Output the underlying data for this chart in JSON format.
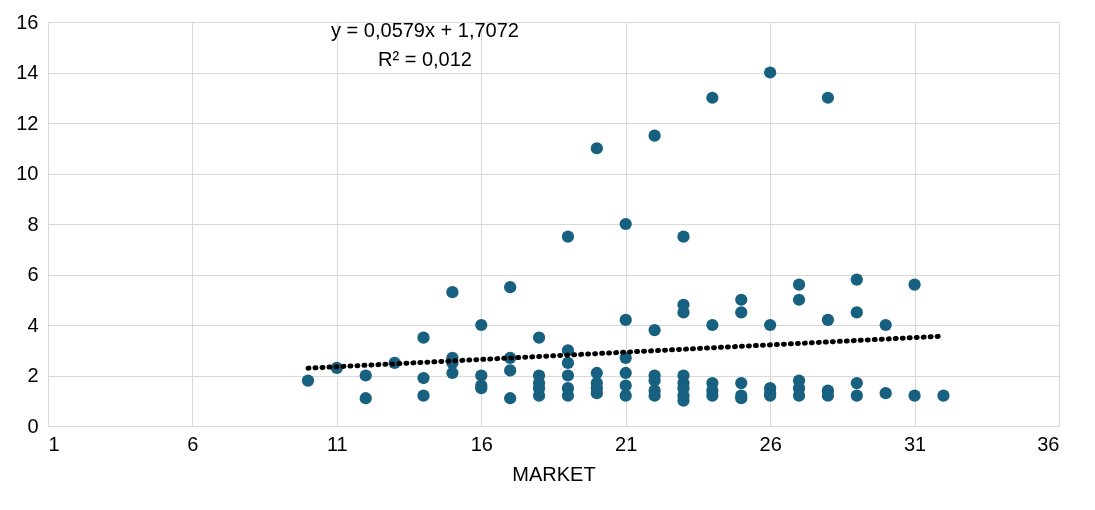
{
  "chart_data": {
    "type": "scatter",
    "xlabel": "MARKET",
    "annotations": [
      "y = 0,0579x + 1,7072",
      "R² = 0,012"
    ],
    "xlim": [
      1,
      36
    ],
    "xticks": [
      1,
      6,
      11,
      16,
      21,
      26,
      31,
      36
    ],
    "ylim": [
      0,
      16
    ],
    "yticks": [
      0,
      2,
      4,
      6,
      8,
      10,
      12,
      14,
      16
    ],
    "grid": true,
    "series": [
      {
        "marker": "circle",
        "color": "#17607f",
        "x": [
          10,
          11,
          12,
          12,
          13,
          14,
          14,
          14,
          15,
          15,
          15,
          15,
          16,
          16,
          16,
          16,
          17,
          17,
          17,
          17,
          18,
          18,
          18,
          18,
          18,
          19,
          19,
          19,
          19,
          19,
          19,
          20,
          20,
          20,
          20,
          20,
          21,
          21,
          21,
          21,
          21,
          21,
          22,
          22,
          22,
          22,
          22,
          22,
          23,
          23,
          23,
          23,
          23,
          23,
          23,
          23,
          24,
          24,
          24,
          24,
          24,
          25,
          25,
          25,
          25,
          25,
          26,
          26,
          26,
          26,
          26,
          27,
          27,
          27,
          27,
          27,
          28,
          28,
          28,
          28,
          29,
          29,
          29,
          29,
          30,
          30,
          31,
          31,
          32
        ],
        "values": [
          1.8,
          2.3,
          2.0,
          1.1,
          2.5,
          3.5,
          1.9,
          1.2,
          5.3,
          2.7,
          2.5,
          2.1,
          4.0,
          2.0,
          1.6,
          1.5,
          5.5,
          2.7,
          2.2,
          1.1,
          3.5,
          2.0,
          1.7,
          1.5,
          1.2,
          7.5,
          3.0,
          2.5,
          2.0,
          1.5,
          1.2,
          11,
          2.1,
          1.7,
          1.5,
          1.3,
          8,
          4.2,
          2.7,
          2.1,
          1.6,
          1.2,
          11.5,
          3.8,
          2.0,
          1.8,
          1.4,
          1.2,
          7.5,
          4.8,
          4.5,
          2.0,
          1.7,
          1.5,
          1.2,
          1.0,
          13,
          4.0,
          1.7,
          1.4,
          1.2,
          5.0,
          4.5,
          1.7,
          1.2,
          1.1,
          14,
          4.0,
          1.5,
          1.3,
          1.2,
          5.6,
          5.0,
          1.8,
          1.5,
          1.2,
          13,
          4.2,
          1.4,
          1.2,
          5.8,
          4.5,
          1.7,
          1.2,
          4.0,
          1.3,
          5.6,
          1.2,
          1.2
        ]
      },
      {
        "type": "line",
        "color": "#000000",
        "line_style": "dotted",
        "x": [
          10,
          32
        ],
        "values": [
          2.29,
          3.56
        ]
      }
    ]
  }
}
